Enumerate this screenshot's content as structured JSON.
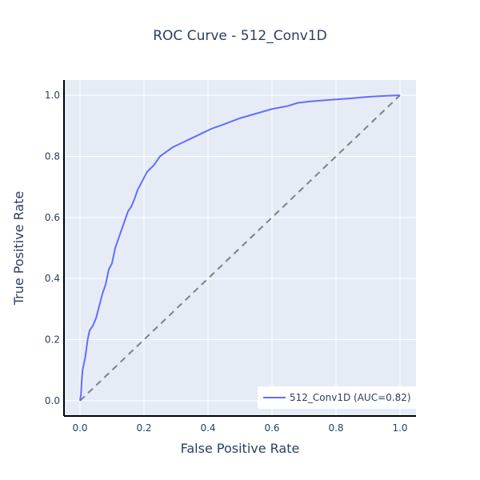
{
  "chart_data": {
    "type": "line",
    "title": "ROC Curve - 512_Conv1D",
    "xlabel": "False Positive Rate",
    "ylabel": "True Positive Rate",
    "xlim": [
      -0.05,
      1.05
    ],
    "ylim": [
      -0.05,
      1.05
    ],
    "xticks": [
      "0.0",
      "0.2",
      "0.4",
      "0.6",
      "0.8",
      "1.0"
    ],
    "yticks": [
      "0.0",
      "0.2",
      "0.4",
      "0.6",
      "0.8",
      "1.0"
    ],
    "grid": true,
    "legend_position": "bottom-right",
    "series": [
      {
        "name": "512_Conv1D (AUC=0.82)",
        "color": "#636efa",
        "dash": "solid",
        "x": [
          0.0,
          0.003,
          0.005,
          0.008,
          0.012,
          0.016,
          0.02,
          0.024,
          0.03,
          0.04,
          0.05,
          0.06,
          0.07,
          0.08,
          0.09,
          0.1,
          0.11,
          0.12,
          0.13,
          0.14,
          0.15,
          0.16,
          0.17,
          0.18,
          0.2,
          0.21,
          0.22,
          0.23,
          0.25,
          0.27,
          0.29,
          0.32,
          0.35,
          0.38,
          0.41,
          0.45,
          0.5,
          0.55,
          0.6,
          0.65,
          0.68,
          0.72,
          0.78,
          0.85,
          0.9,
          0.95,
          1.0
        ],
        "y": [
          0.0,
          0.02,
          0.06,
          0.1,
          0.12,
          0.14,
          0.17,
          0.2,
          0.23,
          0.245,
          0.27,
          0.31,
          0.35,
          0.38,
          0.43,
          0.45,
          0.5,
          0.53,
          0.56,
          0.59,
          0.62,
          0.635,
          0.66,
          0.69,
          0.73,
          0.75,
          0.76,
          0.77,
          0.8,
          0.815,
          0.83,
          0.845,
          0.86,
          0.875,
          0.89,
          0.905,
          0.925,
          0.94,
          0.955,
          0.965,
          0.975,
          0.98,
          0.985,
          0.99,
          0.995,
          0.998,
          1.0
        ]
      },
      {
        "name": "",
        "color": "#808080",
        "dash": "dash",
        "x": [
          0.0,
          1.0
        ],
        "y": [
          0.0,
          1.0
        ]
      }
    ]
  }
}
